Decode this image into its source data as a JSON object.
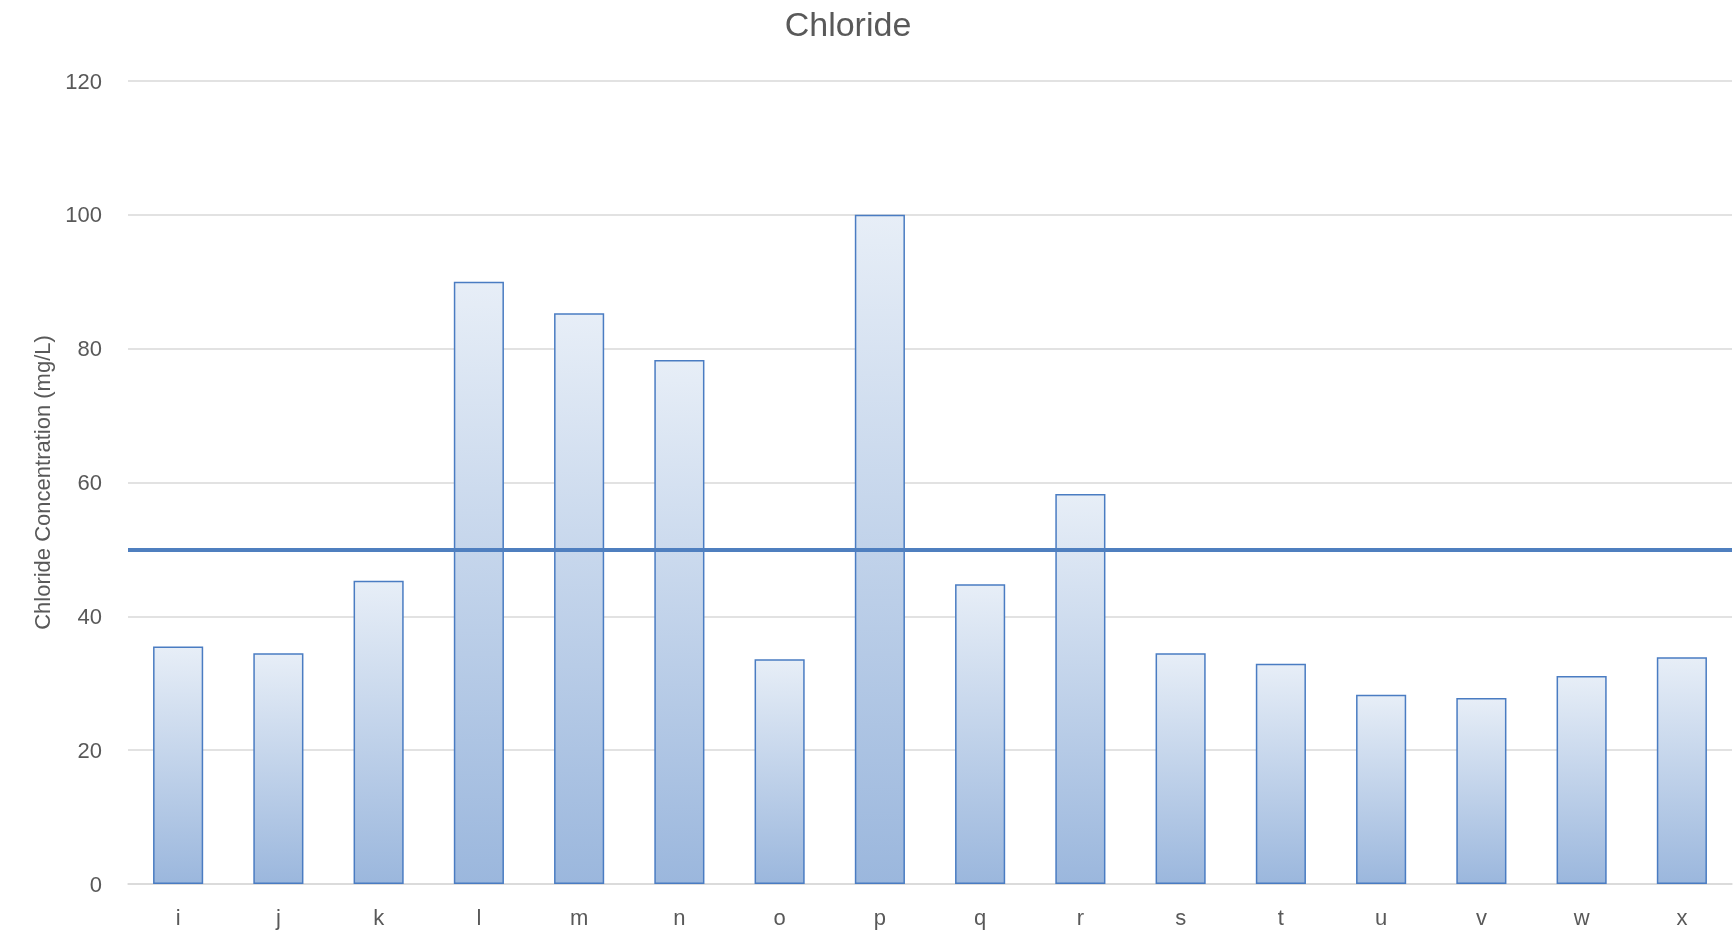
{
  "chart_data": {
    "type": "bar",
    "title": "Chloride",
    "ylabel": "Chloride Concentration (mg/L)",
    "categories": [
      "i",
      "j",
      "k",
      "l",
      "m",
      "n",
      "o",
      "p",
      "q",
      "r",
      "s",
      "t",
      "u",
      "v",
      "w",
      "x"
    ],
    "values": [
      35.5,
      34.5,
      45.3,
      90,
      85.3,
      78.3,
      33.6,
      100,
      44.8,
      58.3,
      34.5,
      32.9,
      28.3,
      27.8,
      31.1,
      33.9
    ],
    "color": "#4a7cc2",
    "ylim": [
      0,
      120
    ],
    "yticks": [
      0,
      20,
      40,
      60,
      80,
      100,
      120
    ],
    "grid": "y",
    "ref_lines": [
      {
        "axis": "y",
        "value": 50,
        "color": "#4f7fbf"
      }
    ]
  }
}
